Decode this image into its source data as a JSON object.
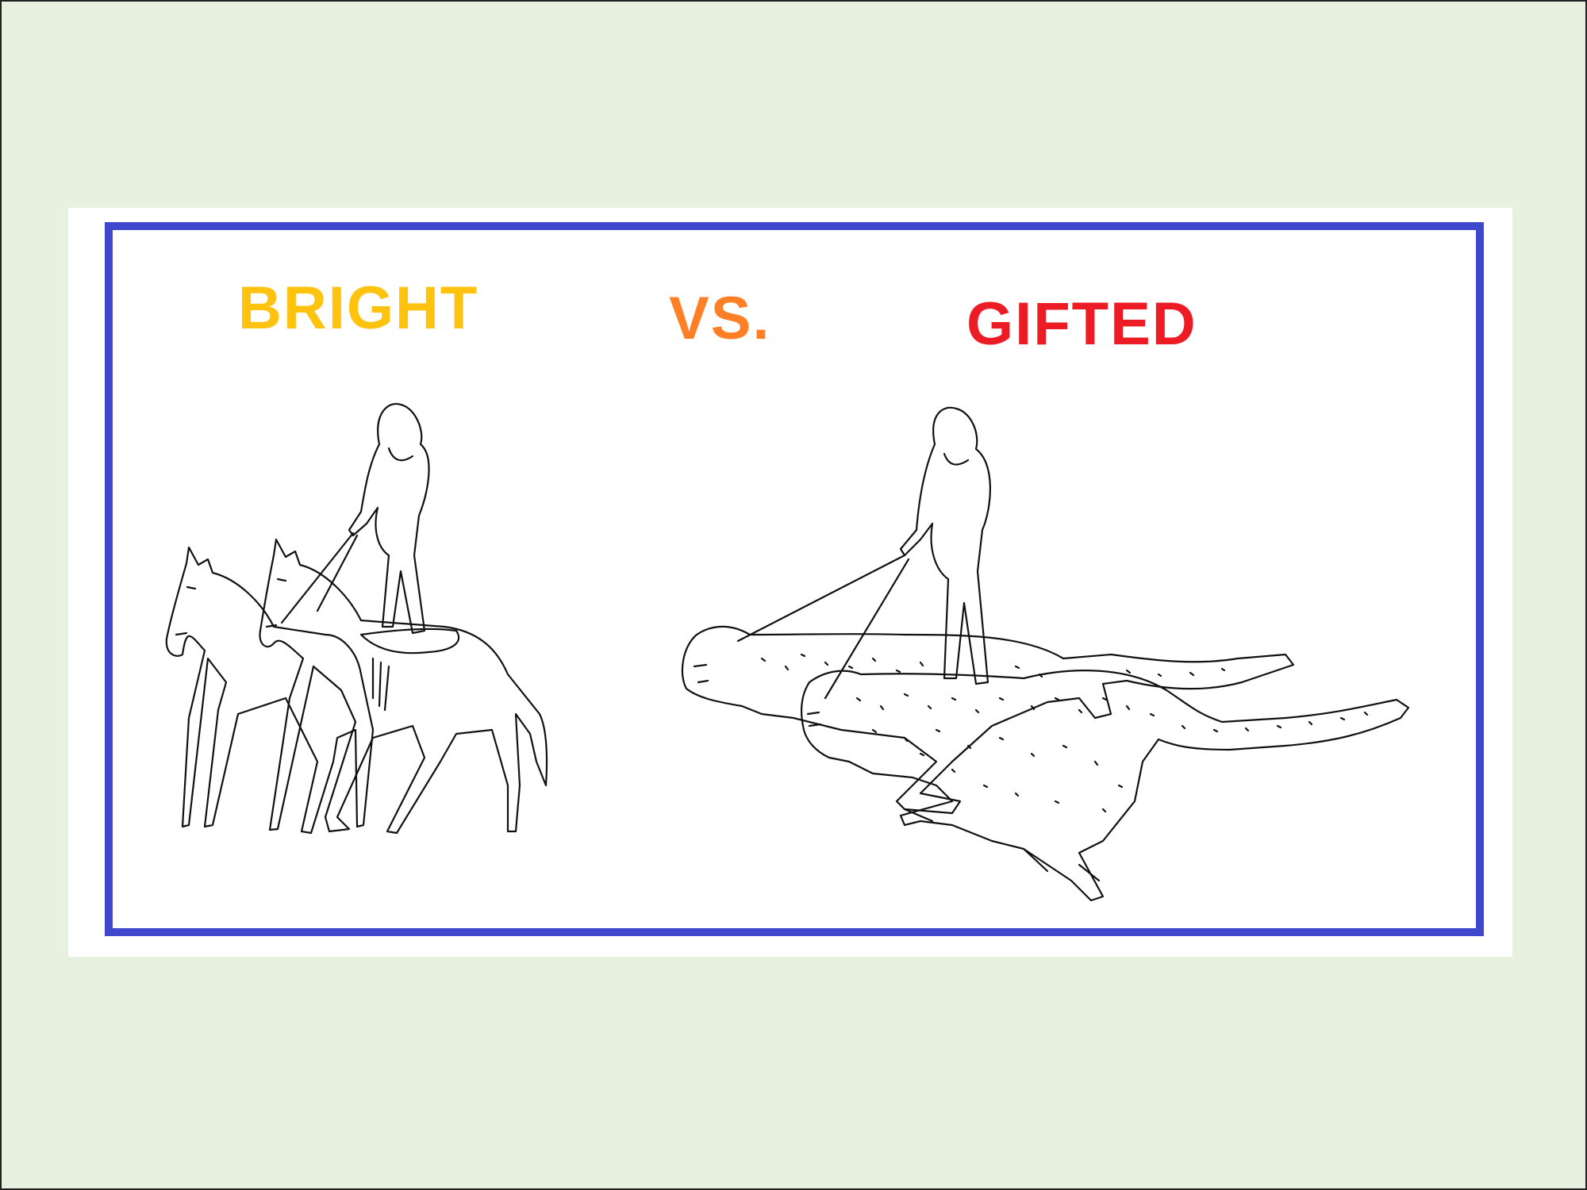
{
  "labels": {
    "left": "BRIGHT",
    "middle": "VS.",
    "right": "GIFTED"
  },
  "colors": {
    "background": "#e8f0e0",
    "card": "#ffffff",
    "frame": "#3f48cc",
    "left_label": "#ffc20e",
    "middle_label": "#ff7f27",
    "right_label": "#ed1c24",
    "line_art": "#111111"
  },
  "illustrations": {
    "left": "rider-standing-on-two-horses",
    "right": "rider-standing-on-two-cheetahs"
  }
}
